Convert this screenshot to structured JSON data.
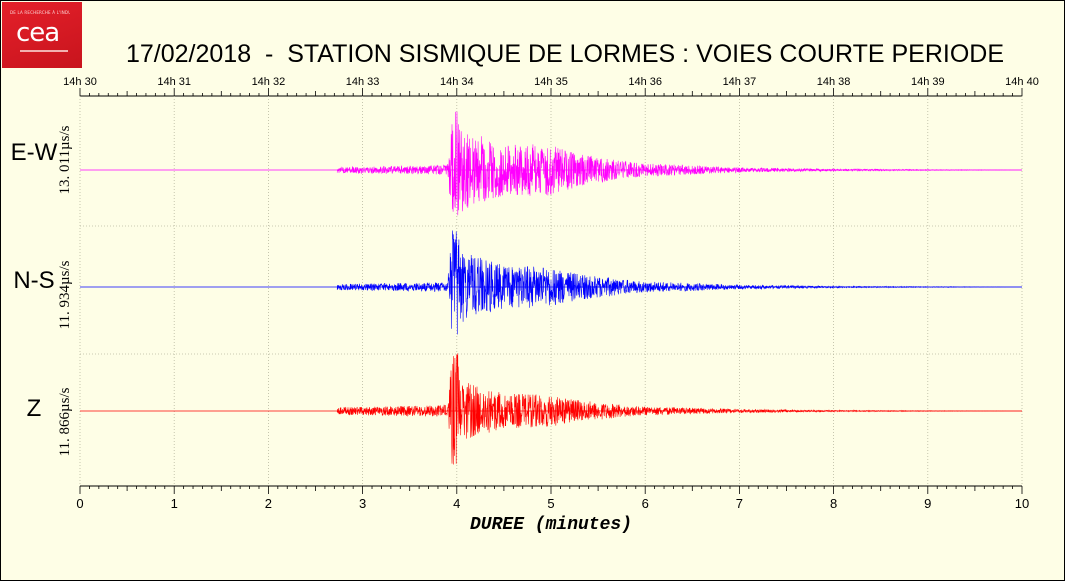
{
  "logo": {
    "text": "cea",
    "small_text": "DE LA RECHERCHE À L'INDUSTRIE"
  },
  "chart_data": {
    "type": "line",
    "title": "17/02/2018  -  STATION SISMIQUE DE LORMES : VOIES COURTE PERIODE",
    "xlabel": "DUREE (minutes)",
    "xlim": [
      0,
      10
    ],
    "x_ticks": [
      "0",
      "1",
      "2",
      "3",
      "4",
      "5",
      "6",
      "7",
      "8",
      "9",
      "10"
    ],
    "top_ticks": [
      "14h 30",
      "14h 31",
      "14h 32",
      "14h 33",
      "14h 34",
      "14h 35",
      "14h 36",
      "14h 37",
      "14h 38",
      "14h 39",
      "14h 40"
    ],
    "grid": true,
    "series": [
      {
        "name": "E-W",
        "scale_label": "13. 011µs/s",
        "color": "#ff00ff",
        "record_start": 2.73,
        "p_arrival": 3.95,
        "peak": 3.99,
        "coda_end": 8.1,
        "envelope": [
          [
            0,
            0
          ],
          [
            2.73,
            0.05
          ],
          [
            3.9,
            0.08
          ],
          [
            3.95,
            0.9
          ],
          [
            4.05,
            0.7
          ],
          [
            4.5,
            0.42
          ],
          [
            4.95,
            0.44
          ],
          [
            5.3,
            0.27
          ],
          [
            5.9,
            0.12
          ],
          [
            7.0,
            0.04
          ],
          [
            8.1,
            0.015
          ],
          [
            10,
            0
          ]
        ]
      },
      {
        "name": "N-S",
        "scale_label": "11. 934µs/s",
        "color": "#0000ff",
        "record_start": 2.73,
        "p_arrival": 3.95,
        "peak": 3.99,
        "coda_end": 8.1,
        "envelope": [
          [
            0,
            0
          ],
          [
            2.73,
            0.05
          ],
          [
            3.9,
            0.08
          ],
          [
            3.95,
            0.9
          ],
          [
            4.05,
            0.6
          ],
          [
            4.5,
            0.36
          ],
          [
            4.95,
            0.34
          ],
          [
            5.3,
            0.22
          ],
          [
            5.9,
            0.1
          ],
          [
            7.0,
            0.035
          ],
          [
            8.1,
            0.012
          ],
          [
            10,
            0
          ]
        ]
      },
      {
        "name": "Z",
        "scale_label": "11. 866µs/s",
        "color": "#ff0000",
        "record_start": 2.73,
        "p_arrival": 3.95,
        "peak": 3.99,
        "coda_end": 8.1,
        "envelope": [
          [
            0,
            0
          ],
          [
            2.73,
            0.06
          ],
          [
            3.9,
            0.1
          ],
          [
            3.95,
            0.9
          ],
          [
            4.05,
            0.5
          ],
          [
            4.5,
            0.3
          ],
          [
            4.95,
            0.27
          ],
          [
            5.3,
            0.18
          ],
          [
            5.9,
            0.08
          ],
          [
            7.0,
            0.03
          ],
          [
            8.1,
            0.01
          ],
          [
            10,
            0
          ]
        ]
      }
    ]
  }
}
